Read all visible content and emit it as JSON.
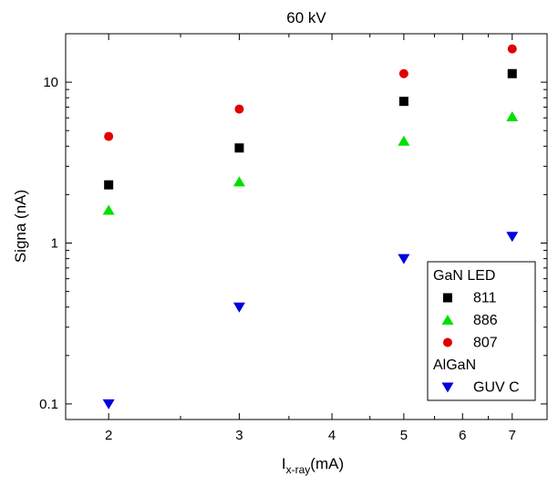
{
  "chart_data": {
    "type": "scatter",
    "title": "60 kV",
    "xlabel": {
      "main": "I",
      "sub": "x-ray",
      "unit": "(mA)"
    },
    "ylabel": "Signa (nA)",
    "xscale": "log",
    "yscale": "log",
    "xlim": [
      1.75,
      7.8
    ],
    "ylim": [
      0.08,
      20
    ],
    "xticks": [
      2,
      3,
      4,
      5,
      6,
      7
    ],
    "xtick_labels": [
      "2",
      "3",
      "4",
      "5",
      "6",
      "7"
    ],
    "yticks": [
      0.1,
      1,
      10
    ],
    "ytick_labels": [
      "0.1",
      "1",
      "10"
    ],
    "grid": false,
    "legend_position": "bottom-right",
    "legend": {
      "groups": [
        {
          "heading": "GaN LED",
          "series_indices": [
            0,
            1,
            2
          ]
        },
        {
          "heading": "AlGaN",
          "series_indices": [
            3
          ]
        }
      ]
    },
    "series": [
      {
        "name": "811",
        "marker": "square",
        "color": "#000000",
        "x": [
          2,
          3,
          5,
          7
        ],
        "y": [
          2.3,
          3.9,
          7.6,
          11.3
        ]
      },
      {
        "name": "886",
        "marker": "triangle-up",
        "color": "#00e000",
        "x": [
          2,
          3,
          5,
          7
        ],
        "y": [
          1.6,
          2.4,
          4.3,
          6.1
        ]
      },
      {
        "name": "807",
        "marker": "circle",
        "color": "#e00000",
        "x": [
          2,
          3,
          5,
          7
        ],
        "y": [
          4.6,
          6.8,
          11.3,
          16.1
        ]
      },
      {
        "name": "GUV C",
        "marker": "triangle-down",
        "color": "#0000e0",
        "x": [
          2,
          3,
          5,
          7
        ],
        "y": [
          0.1,
          0.4,
          0.8,
          1.1
        ]
      }
    ]
  }
}
